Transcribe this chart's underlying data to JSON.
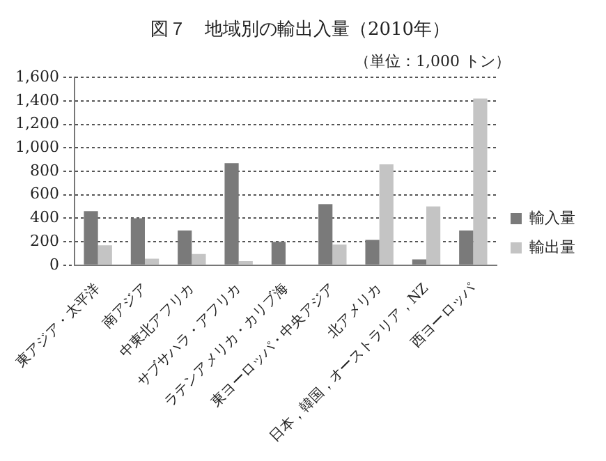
{
  "chart_data": {
    "type": "bar",
    "title": "図７　地域別の輸出入量（2010年）",
    "annotations": [
      "（単位：1,000 トン）"
    ],
    "categories": [
      "東アジア・太平洋",
      "南アジア",
      "中東北アフリカ",
      "サブサハラ・アフリカ",
      "ラテンアメリカ・カリブ海",
      "東ヨーロッパ・中央アジア",
      "北アメリカ",
      "日本，韓国，オーストラリア，NZ",
      "西ヨーロッパ"
    ],
    "series": [
      {
        "name": "輸入量",
        "color": "#7a7a7a",
        "values": [
          460,
          400,
          295,
          870,
          200,
          520,
          215,
          50,
          295
        ]
      },
      {
        "name": "輸出量",
        "color": "#c4c4c4",
        "values": [
          170,
          55,
          95,
          35,
          0,
          175,
          860,
          500,
          1420
        ]
      }
    ],
    "ylim": [
      0,
      1600
    ],
    "yticks": [
      0,
      {
        "value": 200,
        "label": "200"
      },
      {
        "value": 400,
        "label": "400"
      },
      {
        "value": 600,
        "label": "600"
      },
      {
        "value": 800,
        "label": "800"
      },
      {
        "value": 1000,
        "label": "1,000"
      },
      {
        "value": 1200,
        "label": "1,200"
      },
      {
        "value": 1400,
        "label": "1,400"
      },
      {
        "value": 1600,
        "label": "1,600"
      }
    ],
    "grid": "y",
    "legend": "right"
  }
}
